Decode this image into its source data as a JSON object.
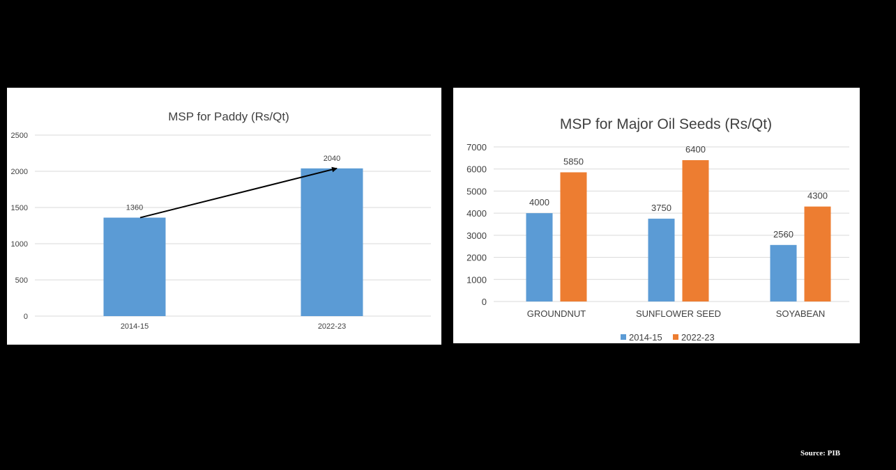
{
  "source": "Source: PIB",
  "colors": {
    "series_2014": "#5b9bd5",
    "series_2022": "#ed7d31",
    "grid": "#d9d9d9",
    "text": "#404040",
    "arrow": "#000000"
  },
  "chart_data": [
    {
      "type": "bar",
      "title": "MSP for Paddy (Rs/Qt)",
      "categories": [
        "2014-15",
        "2022-23"
      ],
      "series": [
        {
          "values": [
            1360,
            2040
          ]
        }
      ],
      "data_labels": [
        "1360",
        "2040"
      ],
      "ylim": [
        0,
        2500
      ],
      "y_ticks": [
        "0",
        "500",
        "1000",
        "1500",
        "2000",
        "2500"
      ],
      "grid": true,
      "legend": "none",
      "annotation": "arrow from 2014-15 bar top to 2022-23 bar top"
    },
    {
      "type": "bar",
      "title": "MSP for Major Oil Seeds (Rs/Qt)",
      "categories": [
        "GROUNDNUT",
        "SUNFLOWER SEED",
        "SOYABEAN"
      ],
      "series": [
        {
          "name": "2014-15",
          "values": [
            4000,
            3750,
            2560
          ],
          "labels": [
            "4000",
            "3750",
            "2560"
          ]
        },
        {
          "name": "2022-23",
          "values": [
            5850,
            6400,
            4300
          ],
          "labels": [
            "5850",
            "6400",
            "4300"
          ]
        }
      ],
      "ylim": [
        0,
        7000
      ],
      "y_ticks": [
        "0",
        "1000",
        "2000",
        "3000",
        "4000",
        "5000",
        "6000",
        "7000"
      ],
      "grid": true,
      "legend": "bottom"
    }
  ]
}
